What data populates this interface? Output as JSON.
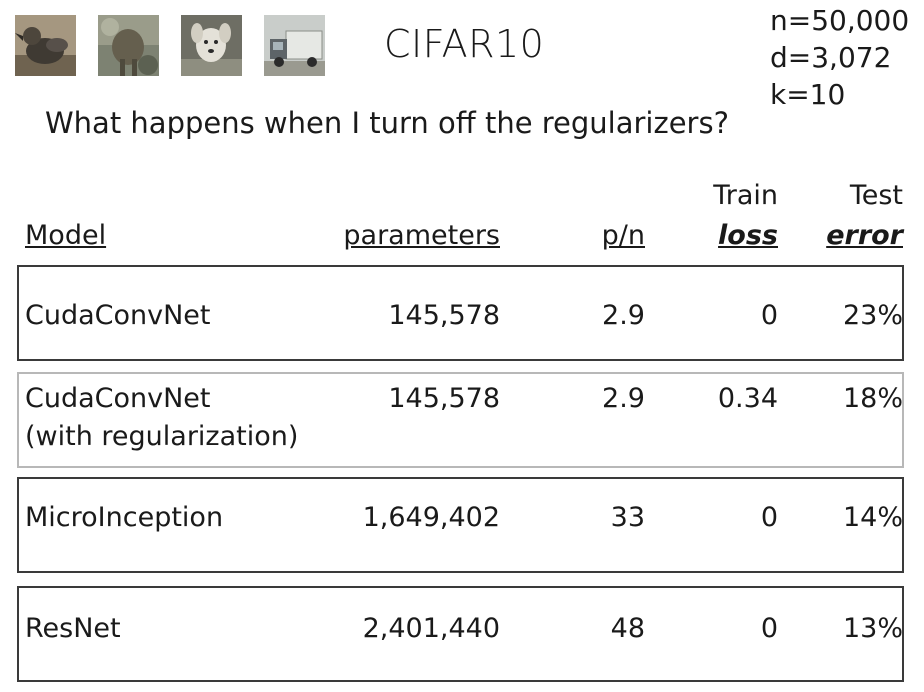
{
  "header": {
    "title": "CIFAR10",
    "stats": [
      "n=50,000",
      "d=3,072",
      "k=10"
    ],
    "question": "What happens when I turn off the regularizers?"
  },
  "table": {
    "columns": {
      "model": "Model",
      "parameters": "parameters",
      "ratio": "p/n",
      "train_top": "Train",
      "train_bottom": "loss",
      "test_top": "Test",
      "test_bottom": "error"
    },
    "rows": [
      {
        "model": "CudaConvNet",
        "model_sub": "",
        "parameters": "145,578",
        "ratio": "2.9",
        "train_loss": "0",
        "test_error": "23%"
      },
      {
        "model": "CudaConvNet",
        "model_sub": "(with regularization)",
        "parameters": "145,578",
        "ratio": "2.9",
        "train_loss": "0.34",
        "test_error": "18%"
      },
      {
        "model": "MicroInception",
        "model_sub": "",
        "parameters": "1,649,402",
        "ratio": "33",
        "train_loss": "0",
        "test_error": "14%"
      },
      {
        "model": "ResNet",
        "model_sub": "",
        "parameters": "2,401,440",
        "ratio": "48",
        "train_loss": "0",
        "test_error": "13%"
      }
    ]
  }
}
